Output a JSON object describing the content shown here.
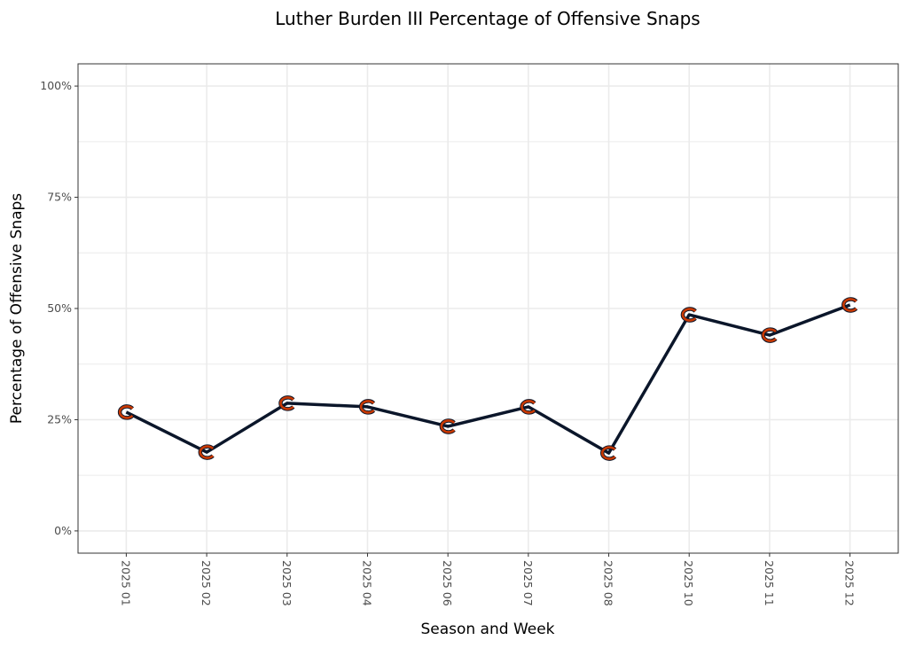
{
  "chart_data": {
    "type": "line",
    "title": "Luther Burden III Percentage of Offensive Snaps",
    "xlabel": "Season and Week",
    "ylabel": "Percentage of Offensive Snaps",
    "categories": [
      "2025 01",
      "2025 02",
      "2025 03",
      "2025 04",
      "2025 06",
      "2025 07",
      "2025 08",
      "2025 10",
      "2025 11",
      "2025 12"
    ],
    "values": [
      26.7,
      17.7,
      28.7,
      27.9,
      23.5,
      27.9,
      17.5,
      48.6,
      44.0,
      50.8
    ],
    "ylim": [
      -5,
      105
    ],
    "yticks": [
      0,
      25,
      50,
      75,
      100
    ],
    "ytick_labels": [
      "0%",
      "25%",
      "50%",
      "75%",
      "100%"
    ],
    "grid": true,
    "legend": "none",
    "colors": {
      "line": "#0b162a",
      "marker": "#c83803",
      "grid": "#ebebeb",
      "border": "#333333"
    },
    "marker_icon": "bears-c-logo-icon"
  }
}
